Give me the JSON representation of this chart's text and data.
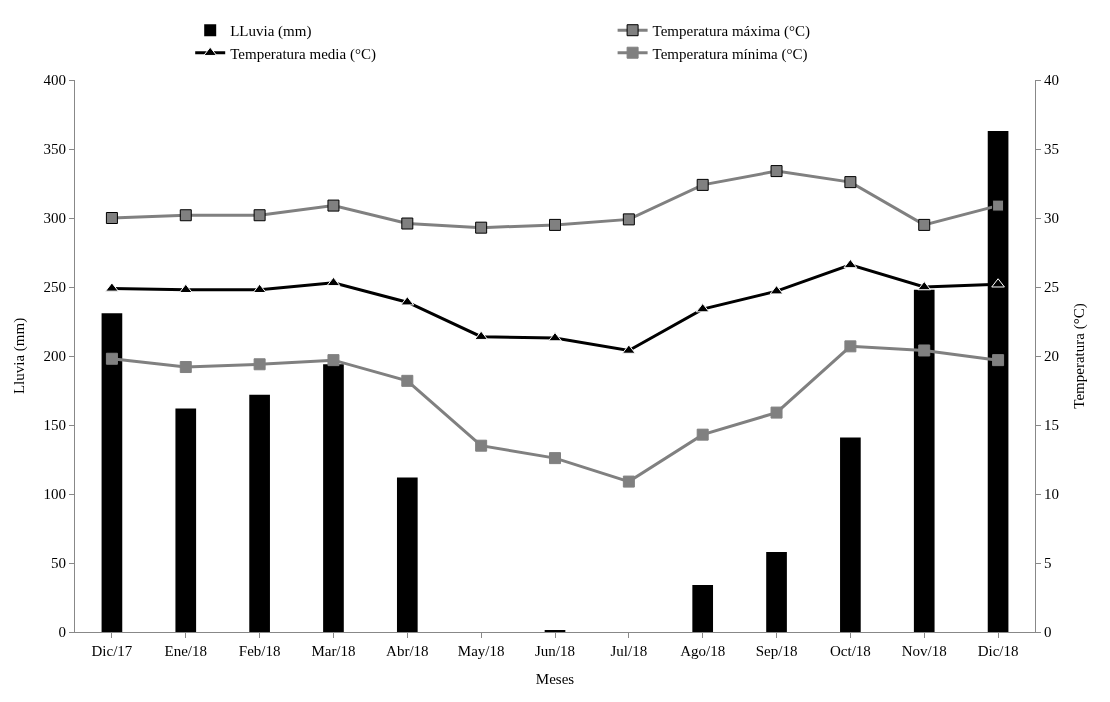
{
  "chart_data": {
    "type": "bar",
    "xlabel": "Meses",
    "ylabel": "Lluvia (mm)",
    "y2label": "Temperatura (°C)",
    "categories": [
      "Dic/17",
      "Ene/18",
      "Feb/18",
      "Mar/18",
      "Abr/18",
      "May/18",
      "Jun/18",
      "Jul/18",
      "Ago/18",
      "Sep/18",
      "Oct/18",
      "Nov/18",
      "Dic/18"
    ],
    "series": [
      {
        "name": "LLuvia (mm)",
        "color": "#000000",
        "values": [
          231,
          162,
          172,
          194,
          112,
          0,
          1,
          0,
          34,
          58,
          141,
          248,
          363
        ]
      },
      {
        "name": "Temperatura máxima (°C)",
        "type": "line",
        "axis": "y2",
        "marker": "square",
        "color": "#808080",
        "values": [
          30.0,
          30.2,
          30.2,
          30.9,
          29.6,
          29.3,
          29.5,
          29.9,
          32.4,
          33.4,
          32.6,
          29.5,
          30.9
        ]
      },
      {
        "name": "Temperatura media (°C)",
        "type": "line",
        "axis": "y2",
        "marker": "triangle",
        "color": "#000000",
        "values": [
          24.9,
          24.8,
          24.8,
          25.3,
          23.9,
          21.4,
          21.3,
          20.4,
          23.4,
          24.7,
          26.6,
          25.0,
          25.2
        ]
      },
      {
        "name": "Temperatura mínima (°C)",
        "type": "line",
        "axis": "y2",
        "marker": "square",
        "color": "#808080",
        "values": [
          19.8,
          19.2,
          19.4,
          19.7,
          18.2,
          13.5,
          12.6,
          10.9,
          14.3,
          15.9,
          20.7,
          20.4,
          19.7
        ]
      }
    ],
    "ylim": [
      0,
      400
    ],
    "yticks": [
      0,
      50,
      100,
      150,
      200,
      250,
      300,
      350,
      400
    ],
    "y2lim": [
      0,
      40
    ],
    "y2ticks": [
      0,
      5,
      10,
      15,
      20,
      25,
      30,
      35,
      40
    ],
    "legend": "top"
  }
}
